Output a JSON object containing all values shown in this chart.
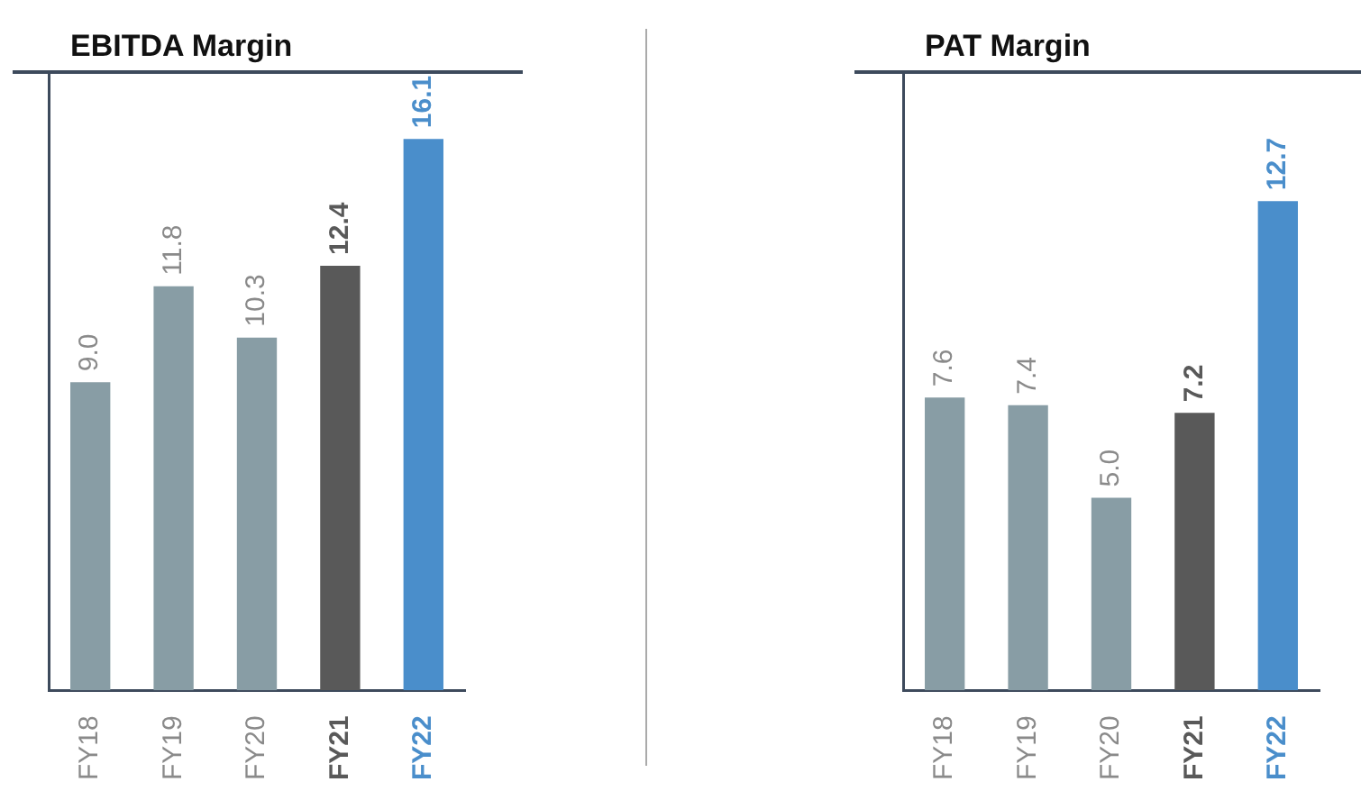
{
  "chart_data": [
    {
      "type": "bar",
      "title": "EBITDA Margin",
      "categories": [
        "FY18",
        "FY19",
        "FY20",
        "FY21",
        "FY22"
      ],
      "values": [
        9.0,
        11.8,
        10.3,
        12.4,
        16.1
      ],
      "colors": [
        "#889da5",
        "#889da5",
        "#889da5",
        "#595959",
        "#4a8ecb"
      ],
      "value_labels": [
        "9.0",
        "11.8",
        "10.3",
        "12.4",
        "16.1"
      ]
    },
    {
      "type": "bar",
      "title": "PAT Margin",
      "categories": [
        "FY18",
        "FY19",
        "FY20",
        "FY21",
        "FY22"
      ],
      "values": [
        7.6,
        7.4,
        5.0,
        7.2,
        12.7
      ],
      "colors": [
        "#889da5",
        "#889da5",
        "#889da5",
        "#595959",
        "#4a8ecb"
      ],
      "value_labels": [
        "7.6",
        "7.4",
        "5.0",
        "7.2",
        "12.7"
      ]
    }
  ]
}
